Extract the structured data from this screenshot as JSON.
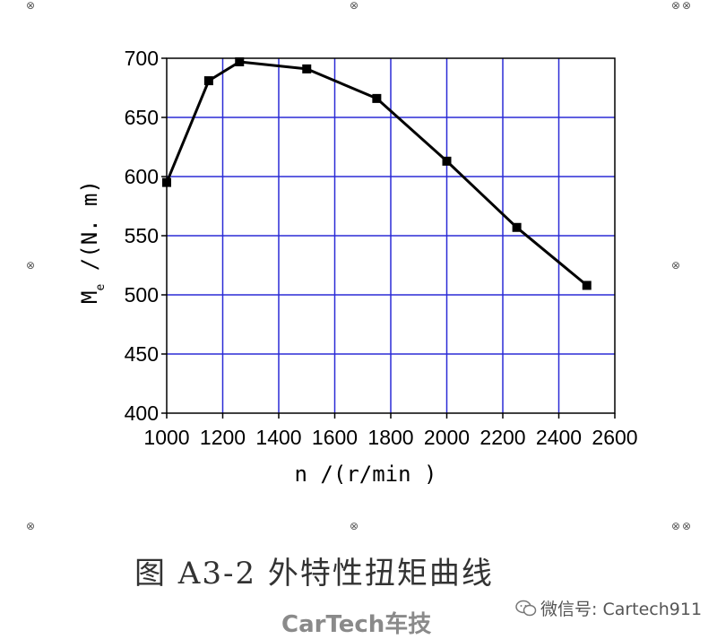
{
  "chart_data": {
    "type": "line",
    "x": [
      1000,
      1150,
      1260,
      1500,
      1750,
      2000,
      2250,
      2500
    ],
    "y": [
      595,
      681,
      697,
      691,
      666,
      613,
      557,
      508
    ],
    "xlabel": "n /(r/min )",
    "ylabel_main": "M",
    "ylabel_sub": "e",
    "ylabel_rest": " /(N. m)",
    "xlim": [
      1000,
      2600
    ],
    "ylim": [
      400,
      700
    ],
    "xticks": [
      1000,
      1200,
      1400,
      1600,
      1800,
      2000,
      2200,
      2400,
      2600
    ],
    "yticks": [
      400,
      450,
      500,
      550,
      600,
      650,
      700
    ],
    "grid": true,
    "colors": {
      "grid": "#2b2bd6",
      "line": "#000000",
      "axis": "#000000"
    }
  },
  "caption": "图 A3-2  外特性扭矩曲线",
  "brand": "CarTech车技",
  "wechat_label": "微信号: Cartech911"
}
